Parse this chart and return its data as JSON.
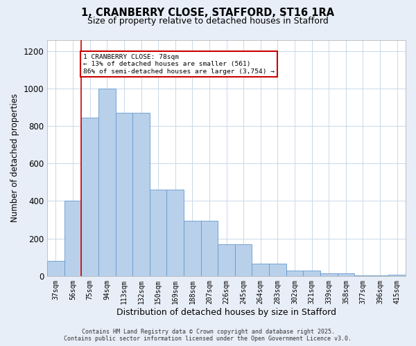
{
  "title_line1": "1, CRANBERRY CLOSE, STAFFORD, ST16 1RA",
  "title_line2": "Size of property relative to detached houses in Stafford",
  "xlabel": "Distribution of detached houses by size in Stafford",
  "ylabel": "Number of detached properties",
  "categories": [
    "37sqm",
    "56sqm",
    "75sqm",
    "94sqm",
    "113sqm",
    "132sqm",
    "150sqm",
    "169sqm",
    "188sqm",
    "207sqm",
    "226sqm",
    "245sqm",
    "264sqm",
    "283sqm",
    "302sqm",
    "321sqm",
    "339sqm",
    "358sqm",
    "377sqm",
    "396sqm",
    "415sqm"
  ],
  "values": [
    80,
    400,
    845,
    1000,
    870,
    870,
    460,
    460,
    295,
    295,
    170,
    170,
    65,
    65,
    30,
    30,
    15,
    15,
    2,
    2,
    5
  ],
  "bar_color": "#b8d0ea",
  "bar_edge_color": "#6699cc",
  "vline_position": 1.5,
  "vline_color": "#cc0000",
  "annotation_text": "1 CRANBERRY CLOSE: 78sqm\n← 13% of detached houses are smaller (561)\n86% of semi-detached houses are larger (3,754) →",
  "annotation_box_edgecolor": "#cc0000",
  "ylim_max": 1260,
  "yticks": [
    0,
    200,
    400,
    600,
    800,
    1000,
    1200
  ],
  "bg_color": "#e8eef8",
  "plot_bg": "#ffffff",
  "grid_color": "#c8d8e8",
  "footer_line1": "Contains HM Land Registry data © Crown copyright and database right 2025.",
  "footer_line2": "Contains public sector information licensed under the Open Government Licence v3.0."
}
